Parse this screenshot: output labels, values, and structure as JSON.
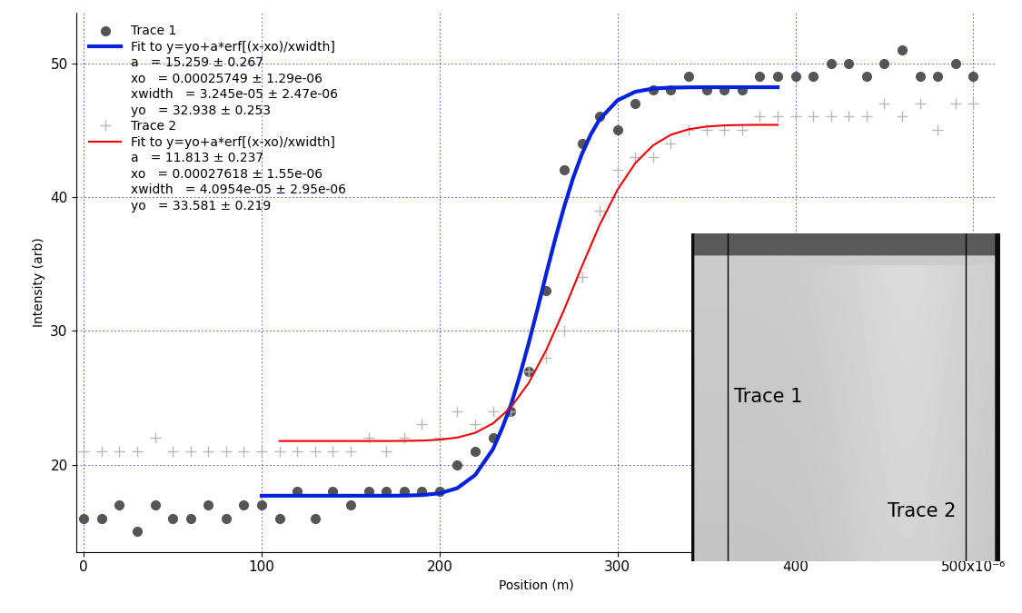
{
  "chart_data": {
    "type": "scatter",
    "x_label": "Position (m)",
    "y_label": "Intensity (arb)",
    "xlim": [
      -4e-06,
      0.000513
    ],
    "ylim": [
      13.5,
      53.8
    ],
    "xticks": [
      0,
      {
        "value": 0.0001,
        "label": "100"
      },
      {
        "value": 0.0002,
        "label": "200"
      },
      {
        "value": 0.0003,
        "label": "300"
      },
      {
        "value": 0.0004,
        "label": "400"
      },
      {
        "value": 0.0005,
        "label": "500x10⁻⁶"
      }
    ],
    "yticks": [
      20,
      30,
      40,
      50
    ],
    "grid": true,
    "legend": "upper left",
    "series": [
      {
        "name": "Trace 1",
        "type": "scatter",
        "color": "#555555",
        "marker": "o",
        "x": [
          0,
          1e-05,
          2e-05,
          3e-05,
          4e-05,
          5e-05,
          6e-05,
          7e-05,
          8e-05,
          9e-05,
          0.0001,
          0.00011,
          0.00012,
          0.00013,
          0.00014,
          0.00015,
          0.00016,
          0.00017,
          0.00018,
          0.00019,
          0.0002,
          0.00021,
          0.00022,
          0.00023,
          0.00024,
          0.00025,
          0.00026,
          0.00027,
          0.00028,
          0.00029,
          0.0003,
          0.00031,
          0.00032,
          0.00033,
          0.00034,
          0.00035,
          0.00036,
          0.00037,
          0.00038,
          0.00039,
          0.0004,
          0.00041,
          0.00042,
          0.00043,
          0.00044,
          0.00045,
          0.00046,
          0.00047,
          0.00048,
          0.00049,
          0.0005
        ],
        "values": [
          16,
          16,
          17,
          15,
          17,
          16,
          16,
          17,
          16,
          17,
          17,
          16,
          18,
          16,
          18,
          17,
          18,
          18,
          18,
          18,
          18,
          20,
          21,
          22,
          24,
          27,
          33,
          42,
          44,
          46,
          45,
          47,
          48,
          48,
          49,
          48,
          48,
          48,
          49,
          49,
          49,
          49,
          50,
          50,
          49,
          50,
          51,
          49,
          49,
          50,
          49
        ]
      },
      {
        "name": "Fit to y=yo+a*erf[(x-xo)/xwidth]",
        "type": "line",
        "color": "#0022dd",
        "line_style": "solid",
        "parameters": [
          [
            "a",
            "= 15.259 ± 0.267"
          ],
          [
            "xo",
            "= 0.00025749 ± 1.29e-06"
          ],
          [
            "xwidth",
            "= 3.245e-05 ± 2.47e-06"
          ],
          [
            "yo",
            "= 32.938 ± 0.253"
          ]
        ],
        "x": [
          0.0001,
          0.00011,
          0.00012,
          0.00013,
          0.00014,
          0.00015,
          0.00016,
          0.00017,
          0.00018,
          0.00019,
          0.0002,
          0.00021,
          0.00022,
          0.00023,
          0.000235,
          0.00024,
          0.000245,
          0.00025,
          0.000255,
          0.00026,
          0.000265,
          0.00027,
          0.000275,
          0.00028,
          0.000285,
          0.00029,
          0.0003,
          0.00031,
          0.00032,
          0.00033,
          0.00034,
          0.00035,
          0.00036,
          0.00037,
          0.00038,
          0.00039
        ],
        "values": [
          17.68,
          17.68,
          17.68,
          17.68,
          17.68,
          17.68,
          17.68,
          17.68,
          17.69,
          17.73,
          17.86,
          18.25,
          19.23,
          21.16,
          22.67,
          24.42,
          26.62,
          29.04,
          31.62,
          34.29,
          36.87,
          39.26,
          41.4,
          43.21,
          44.68,
          45.81,
          47.22,
          47.86,
          48.1,
          48.17,
          48.19,
          48.2,
          48.2,
          48.2,
          48.2,
          48.2
        ]
      },
      {
        "name": "Trace 2",
        "type": "scatter",
        "color": "#b8b8b8",
        "marker": "+",
        "x": [
          0,
          1e-05,
          2e-05,
          3e-05,
          4e-05,
          5e-05,
          6e-05,
          7e-05,
          8e-05,
          9e-05,
          0.0001,
          0.00011,
          0.00012,
          0.00013,
          0.00014,
          0.00015,
          0.00016,
          0.00017,
          0.00018,
          0.00019,
          0.0002,
          0.00021,
          0.00022,
          0.00023,
          0.00024,
          0.00025,
          0.00026,
          0.00027,
          0.00028,
          0.00029,
          0.0003,
          0.00031,
          0.00032,
          0.00033,
          0.00034,
          0.00035,
          0.00036,
          0.00037,
          0.00038,
          0.00039,
          0.0004,
          0.00041,
          0.00042,
          0.00043,
          0.00044,
          0.00045,
          0.00046,
          0.00047,
          0.00048,
          0.00049,
          0.0005
        ],
        "values": [
          21,
          21,
          21,
          21,
          22,
          21,
          21,
          21,
          21,
          21,
          21,
          21,
          21,
          21,
          21,
          21,
          22,
          21,
          22,
          23,
          22,
          24,
          23,
          24,
          24,
          27,
          28,
          30,
          34,
          39,
          42,
          43,
          43,
          44,
          45,
          45,
          45,
          45,
          46,
          46,
          46,
          46,
          46,
          46,
          46,
          47,
          46,
          47,
          45,
          47,
          47
        ]
      },
      {
        "name": "Fit to y=yo+a*erf[(x-xo)/xwidth]",
        "type": "line",
        "color": "#ee0000",
        "line_style": "solid",
        "parameters": [
          [
            "a",
            "= 11.813 ± 0.237"
          ],
          [
            "xo",
            "= 0.00027618 ± 1.55e-06"
          ],
          [
            "xwidth",
            "= 4.0954e-05 ± 2.95e-06"
          ],
          [
            "yo",
            "= 33.581 ± 0.219"
          ]
        ],
        "x": [
          0.00011,
          0.00012,
          0.00013,
          0.00014,
          0.00015,
          0.00016,
          0.00017,
          0.00018,
          0.00019,
          0.0002,
          0.00021,
          0.00022,
          0.00023,
          0.00024,
          0.00025,
          0.00026,
          0.00027,
          0.00028,
          0.00029,
          0.0003,
          0.00031,
          0.00032,
          0.00033,
          0.00034,
          0.00035,
          0.00036,
          0.00037,
          0.00038,
          0.00039
        ],
        "values": [
          21.77,
          21.77,
          21.77,
          21.77,
          21.77,
          21.77,
          21.77,
          21.78,
          21.8,
          21.87,
          22.03,
          22.38,
          23.08,
          24.27,
          26.09,
          28.58,
          31.58,
          34.82,
          37.92,
          40.54,
          42.53,
          43.86,
          44.65,
          45.06,
          45.26,
          45.35,
          45.38,
          45.39,
          45.39
        ]
      }
    ],
    "inset": {
      "labels": [
        "Trace 1",
        "Trace 2"
      ]
    }
  }
}
